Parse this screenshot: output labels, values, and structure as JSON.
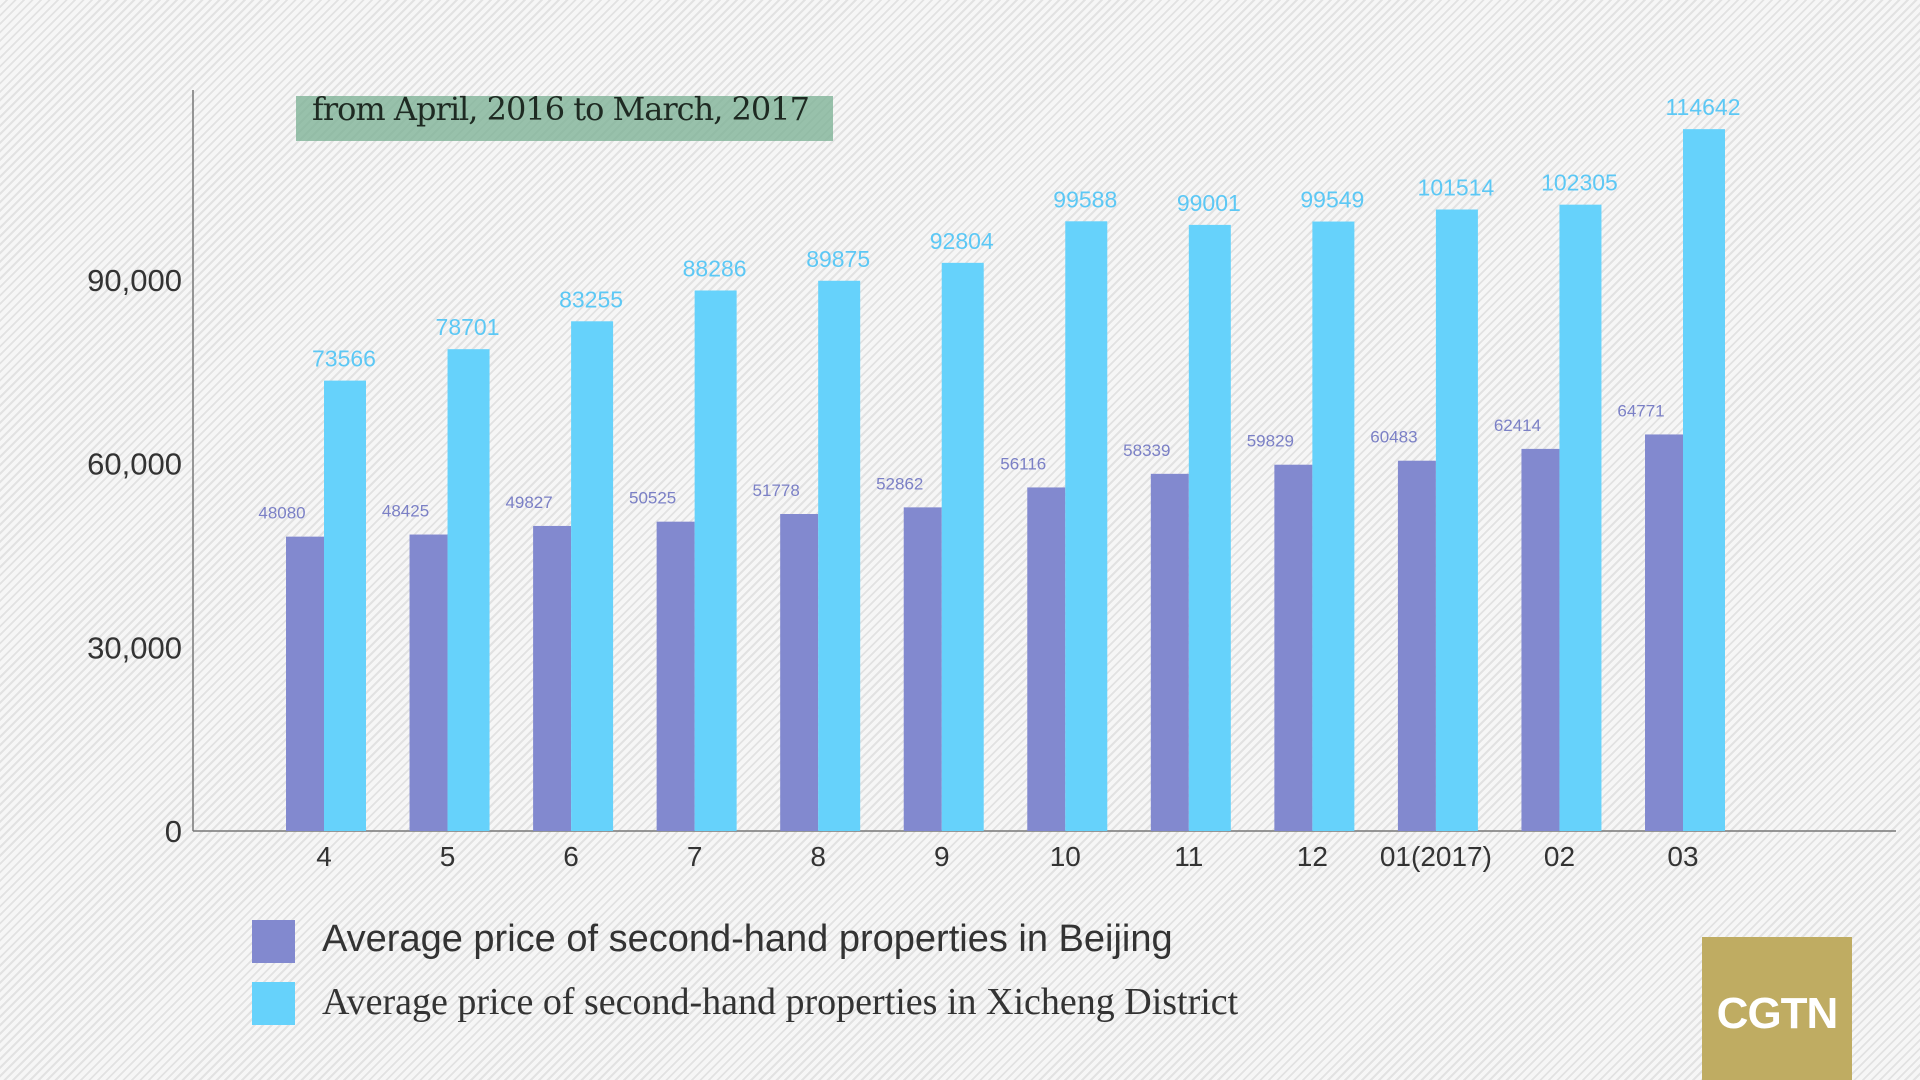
{
  "chart_data": {
    "type": "bar",
    "title": "from April, 2016 to March, 2017",
    "categories": [
      "4",
      "5",
      "6",
      "7",
      "8",
      "9",
      "10",
      "11",
      "12",
      "01(2017)",
      "02",
      "03"
    ],
    "series": [
      {
        "name": "Average price of second-hand properties in Beijing",
        "color": "#8289cf",
        "values": [
          48080,
          48425,
          49827,
          50525,
          51778,
          52862,
          56116,
          58339,
          59829,
          60483,
          62414,
          64771
        ]
      },
      {
        "name": "Average price of second-hand properties in Xicheng District",
        "color": "#66d2fb",
        "values": [
          73566,
          78701,
          83255,
          88286,
          89875,
          92804,
          99588,
          99001,
          99549,
          101514,
          102305,
          114642
        ]
      }
    ],
    "yticks": [
      0,
      30000,
      60000,
      90000
    ],
    "ytick_labels": [
      "0",
      "30,000",
      "60,000",
      "90,000"
    ],
    "ylim": [
      0,
      120000
    ],
    "xlabel": "",
    "ylabel": "",
    "grid": false,
    "legend_position": "bottom-left"
  },
  "logo": "CGTN"
}
